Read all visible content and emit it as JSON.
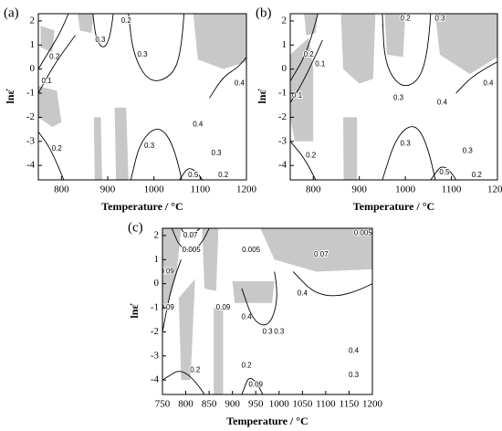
{
  "chart_data": [
    {
      "type": "contour",
      "panel_label": "(a)",
      "xlabel": "Temperature / °C",
      "ylabel": "lnε̇",
      "xlim": [
        750,
        1200
      ],
      "ylim": [
        -4.6,
        2.3
      ],
      "xticks": [
        800,
        900,
        1000,
        1100,
        1200
      ],
      "yticks": [
        -4,
        -3,
        -2,
        -1,
        0,
        1,
        2
      ],
      "region_color": "#c8c8c8",
      "line_color": "#000000",
      "regions": [
        [
          [
            750,
            -0.7
          ],
          [
            790,
            -0.9
          ],
          [
            800,
            -2.2
          ],
          [
            780,
            -2.4
          ],
          [
            750,
            -2.0
          ]
        ],
        [
          [
            755,
            1.8
          ],
          [
            785,
            1.6
          ],
          [
            780,
            0.7
          ],
          [
            755,
            0.9
          ]
        ],
        [
          [
            835,
            2.3
          ],
          [
            870,
            2.3
          ],
          [
            865,
            1.5
          ],
          [
            840,
            1.6
          ]
        ],
        [
          [
            870,
            -2.0
          ],
          [
            885,
            -2.0
          ],
          [
            888,
            -4.6
          ],
          [
            872,
            -4.6
          ]
        ],
        [
          [
            915,
            -1.6
          ],
          [
            940,
            -1.6
          ],
          [
            945,
            -4.6
          ],
          [
            918,
            -4.6
          ]
        ],
        [
          [
            1085,
            2.3
          ],
          [
            1200,
            2.3
          ],
          [
            1200,
            0.3
          ],
          [
            1150,
            0.0
          ],
          [
            1095,
            0.4
          ]
        ]
      ],
      "contours": [
        {
          "level": 0.3,
          "points": [
            [
              868,
              2.3
            ],
            [
              874,
              1.3
            ],
            [
              890,
              0.8
            ],
            [
              906,
              1.3
            ],
            [
              912,
              2.3
            ]
          ],
          "label_at": [
            [
              884,
              1.2
            ]
          ]
        },
        {
          "level": 0.3,
          "points": [
            [
              945,
              2.3
            ],
            [
              955,
              0.6
            ],
            [
              990,
              -0.6
            ],
            [
              1040,
              -0.3
            ],
            [
              1060,
              0.8
            ],
            [
              1065,
              2.3
            ]
          ],
          "label_at": [
            [
              975,
              0.6
            ]
          ]
        },
        {
          "level": 0.2,
          "points": [
            [
              750,
              0.0
            ],
            [
              775,
              0.8
            ],
            [
              800,
              1.6
            ],
            [
              815,
              2.3
            ]
          ],
          "label_at": [
            [
              785,
              0.5
            ],
            [
              940,
              2.0
            ]
          ]
        },
        {
          "level": 0.1,
          "points": [
            [
              750,
              -1.0
            ],
            [
              770,
              -0.3
            ],
            [
              795,
              0.5
            ],
            [
              830,
              1.4
            ]
          ],
          "label_at": [
            [
              768,
              -0.5
            ]
          ]
        },
        {
          "level": 0.4,
          "points": [
            [
              1120,
              -1.2
            ],
            [
              1150,
              -0.3
            ],
            [
              1185,
              0.1
            ],
            [
              1200,
              0.5
            ]
          ],
          "label_at": [
            [
              1185,
              -0.6
            ],
            [
              1095,
              -2.3
            ]
          ]
        },
        {
          "level": 0.3,
          "points": [
            [
              950,
              -4.6
            ],
            [
              970,
              -3.0
            ],
            [
              1010,
              -2.3
            ],
            [
              1045,
              -3.2
            ],
            [
              1060,
              -4.6
            ]
          ],
          "label_at": [
            [
              990,
              -3.2
            ],
            [
              1135,
              -3.5
            ]
          ]
        },
        {
          "level": 0.5,
          "points": [
            [
              1055,
              -4.6
            ],
            [
              1080,
              -3.9
            ],
            [
              1105,
              -4.6
            ]
          ],
          "label_at": [
            [
              1085,
              -4.4
            ]
          ]
        },
        {
          "level": 0.2,
          "points": [
            [
              750,
              -2.6
            ],
            [
              780,
              -3.4
            ],
            [
              805,
              -4.6
            ]
          ],
          "label_at": [
            [
              790,
              -3.3
            ],
            [
              1150,
              -4.4
            ]
          ]
        }
      ]
    },
    {
      "type": "contour",
      "panel_label": "(b)",
      "xlabel": "Temperature / °C",
      "ylabel": "lnε̇",
      "xlim": [
        750,
        1200
      ],
      "ylim": [
        -4.6,
        2.3
      ],
      "xticks": [
        800,
        900,
        1000,
        1100,
        1200
      ],
      "yticks": [
        -4,
        -3,
        -2,
        -1,
        0,
        1,
        2
      ],
      "region_color": "#c8c8c8",
      "line_color": "#000000",
      "regions": [
        [
          [
            750,
            0.6
          ],
          [
            790,
            1.3
          ],
          [
            800,
            0.0
          ],
          [
            800,
            -3.0
          ],
          [
            760,
            -3.0
          ],
          [
            750,
            -2.0
          ]
        ],
        [
          [
            780,
            2.3
          ],
          [
            810,
            2.3
          ],
          [
            805,
            1.5
          ],
          [
            785,
            1.4
          ]
        ],
        [
          [
            860,
            2.3
          ],
          [
            935,
            2.3
          ],
          [
            930,
            -0.4
          ],
          [
            900,
            -0.6
          ],
          [
            865,
            0.0
          ]
        ],
        [
          [
            865,
            -2.0
          ],
          [
            895,
            -2.0
          ],
          [
            895,
            -4.6
          ],
          [
            866,
            -4.6
          ]
        ],
        [
          [
            955,
            2.3
          ],
          [
            1000,
            2.3
          ],
          [
            995,
            0.5
          ],
          [
            960,
            0.6
          ]
        ],
        [
          [
            1065,
            2.3
          ],
          [
            1200,
            2.3
          ],
          [
            1200,
            0.5
          ],
          [
            1140,
            -0.2
          ],
          [
            1075,
            0.6
          ]
        ]
      ],
      "contours": [
        {
          "level": 0.3,
          "points": [
            [
              950,
              2.3
            ],
            [
              955,
              0.2
            ],
            [
              990,
              -0.8
            ],
            [
              1030,
              -0.5
            ],
            [
              1050,
              0.8
            ],
            [
              1055,
              2.3
            ]
          ],
          "label_at": [
            [
              985,
              -1.2
            ],
            [
              1075,
              2.1
            ]
          ]
        },
        {
          "level": 0.4,
          "points": [
            [
              1110,
              -1.0
            ],
            [
              1150,
              -0.2
            ],
            [
              1200,
              0.3
            ]
          ],
          "label_at": [
            [
              1180,
              -0.6
            ],
            [
              1080,
              -1.4
            ]
          ]
        },
        {
          "level": 0.2,
          "points": [
            [
              750,
              -0.5
            ],
            [
              790,
              0.8
            ],
            [
              810,
              2.3
            ]
          ],
          "label_at": [
            [
              790,
              0.6
            ],
            [
              1000,
              2.1
            ]
          ]
        },
        {
          "level": 0.1,
          "points": [
            [
              750,
              -1.4
            ],
            [
              785,
              -0.3
            ],
            [
              820,
              1.2
            ]
          ],
          "label_at": [
            [
              765,
              -1.1
            ],
            [
              815,
              0.2
            ]
          ]
        },
        {
          "level": 0.3,
          "points": [
            [
              950,
              -4.6
            ],
            [
              980,
              -2.8
            ],
            [
              1020,
              -2.2
            ],
            [
              1050,
              -3.2
            ],
            [
              1065,
              -4.6
            ]
          ],
          "label_at": [
            [
              1000,
              -3.1
            ],
            [
              1135,
              -3.4
            ]
          ]
        },
        {
          "level": 0.5,
          "points": [
            [
              1055,
              -4.6
            ],
            [
              1085,
              -3.8
            ],
            [
              1110,
              -4.6
            ]
          ],
          "label_at": [
            [
              1085,
              -4.3
            ]
          ]
        },
        {
          "level": 0.2,
          "points": [
            [
              750,
              -3.0
            ],
            [
              785,
              -3.8
            ],
            [
              805,
              -4.6
            ]
          ],
          "label_at": [
            [
              795,
              -3.6
            ],
            [
              1155,
              -4.4
            ]
          ]
        }
      ]
    },
    {
      "type": "contour",
      "panel_label": "(c)",
      "xlabel": "Temperature / °C",
      "ylabel": "lnε̇",
      "xlim": [
        750,
        1200
      ],
      "ylim": [
        -4.6,
        2.3
      ],
      "xticks": [
        750,
        800,
        850,
        900,
        950,
        1000,
        1050,
        1100,
        1150,
        1200
      ],
      "yticks": [
        -4,
        -3,
        -2,
        -1,
        0,
        1,
        2
      ],
      "region_color": "#c8c8c8",
      "line_color": "#000000",
      "regions": [
        [
          [
            750,
            2.3
          ],
          [
            790,
            2.3
          ],
          [
            780,
            0.4
          ],
          [
            760,
            -1.0
          ],
          [
            750,
            -1.0
          ]
        ],
        [
          [
            785,
            -0.6
          ],
          [
            820,
            0.2
          ],
          [
            810,
            -4.0
          ],
          [
            790,
            -4.0
          ]
        ],
        [
          [
            835,
            2.3
          ],
          [
            870,
            2.3
          ],
          [
            865,
            -0.3
          ],
          [
            840,
            -0.2
          ]
        ],
        [
          [
            860,
            -4.6
          ],
          [
            880,
            -4.6
          ],
          [
            880,
            -1.0
          ],
          [
            860,
            -1.0
          ]
        ],
        [
          [
            900,
            0.1
          ],
          [
            990,
            0.1
          ],
          [
            985,
            -0.8
          ],
          [
            905,
            -0.8
          ]
        ],
        [
          [
            960,
            2.3
          ],
          [
            1200,
            2.3
          ],
          [
            1200,
            0.6
          ],
          [
            1080,
            0.5
          ],
          [
            990,
            1.0
          ]
        ]
      ],
      "contours": [
        {
          "level": 0.07,
          "points": [
            [
              790,
              2.3
            ],
            [
              805,
              1.8
            ],
            [
              830,
              2.3
            ]
          ],
          "label_at": [
            [
              810,
              2.0
            ],
            [
              1090,
              1.2
            ]
          ]
        },
        {
          "level": 0.005,
          "points": [
            [
              770,
              2.3
            ],
            [
              790,
              1.4
            ],
            [
              830,
              1.4
            ],
            [
              850,
              2.3
            ]
          ],
          "label_at": [
            [
              812,
              1.4
            ],
            [
              940,
              1.4
            ],
            [
              1180,
              2.1
            ]
          ]
        },
        {
          "level": 0.09,
          "points": [
            [
              750,
              -2.0
            ],
            [
              770,
              0.0
            ],
            [
              790,
              1.0
            ]
          ],
          "label_at": [
            [
              760,
              0.5
            ],
            [
              760,
              -1.0
            ],
            [
              880,
              -1.0
            ]
          ]
        },
        {
          "level": 0.4,
          "points": [
            [
              1030,
              0.5
            ],
            [
              1080,
              -0.5
            ],
            [
              1150,
              -0.5
            ],
            [
              1200,
              0.0
            ]
          ],
          "label_at": [
            [
              1050,
              -0.4
            ],
            [
              1160,
              -2.8
            ],
            [
              930,
              -1.4
            ]
          ]
        },
        {
          "level": 0.3,
          "points": [
            [
              920,
              -0.2
            ],
            [
              945,
              -1.6
            ],
            [
              980,
              -1.8
            ],
            [
              1000,
              -0.5
            ],
            [
              990,
              0.5
            ]
          ],
          "label_at": [
            [
              975,
              -2.0
            ],
            [
              1000,
              -2.0
            ],
            [
              1160,
              -3.8
            ]
          ]
        },
        {
          "level": 0.2,
          "points": [
            [
              750,
              -4.0
            ],
            [
              800,
              -3.4
            ],
            [
              840,
              -4.6
            ]
          ],
          "label_at": [
            [
              820,
              -3.6
            ],
            [
              930,
              -3.4
            ]
          ]
        },
        {
          "level": 0.09,
          "points": [
            [
              920,
              -4.6
            ],
            [
              940,
              -3.6
            ],
            [
              965,
              -4.6
            ]
          ],
          "label_at": [
            [
              950,
              -4.2
            ]
          ]
        }
      ]
    }
  ]
}
